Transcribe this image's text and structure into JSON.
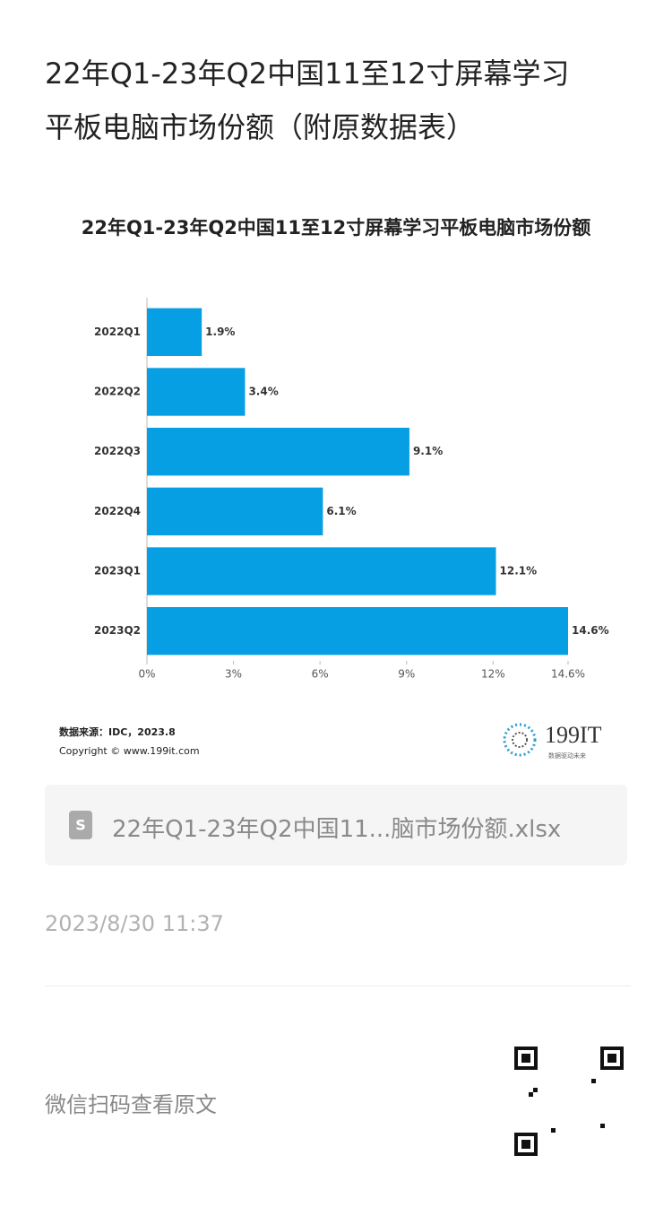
{
  "article_title": "22年Q1-23年Q2中国11至12寸屏幕学习平板电脑市场份额（附原数据表）",
  "chart_data": {
    "type": "bar",
    "orientation": "horizontal",
    "title": "22年Q1-23年Q2中国11至12寸屏幕学习平板电脑市场份额",
    "categories": [
      "2022Q1",
      "2022Q2",
      "2022Q3",
      "2022Q4",
      "2023Q1",
      "2023Q2"
    ],
    "values": [
      1.9,
      3.4,
      9.1,
      6.1,
      12.1,
      14.6
    ],
    "value_labels": [
      "1.9%",
      "3.4%",
      "9.1%",
      "6.1%",
      "12.1%",
      "14.6%"
    ],
    "color": "#069fe3",
    "xlim": [
      0,
      14.6
    ],
    "xticks": [
      {
        "value": 0,
        "label": "0%"
      },
      {
        "value": 3,
        "label": "3%"
      },
      {
        "value": 6,
        "label": "6%"
      },
      {
        "value": 9,
        "label": "9%"
      },
      {
        "value": 12,
        "label": "12%"
      },
      {
        "value": 14.6,
        "label": "14.6%"
      }
    ],
    "source": "数据来源：IDC，2023.8",
    "copyright": "Copyright © www.199it.com",
    "logo": "199IT",
    "logo_slogan": "数据驱动未来"
  },
  "attachment": "22年Q1-23年Q2中国11...脑市场份额.xlsx",
  "date": "2023/8/30 11:37",
  "footer": "微信扫码查看原文"
}
